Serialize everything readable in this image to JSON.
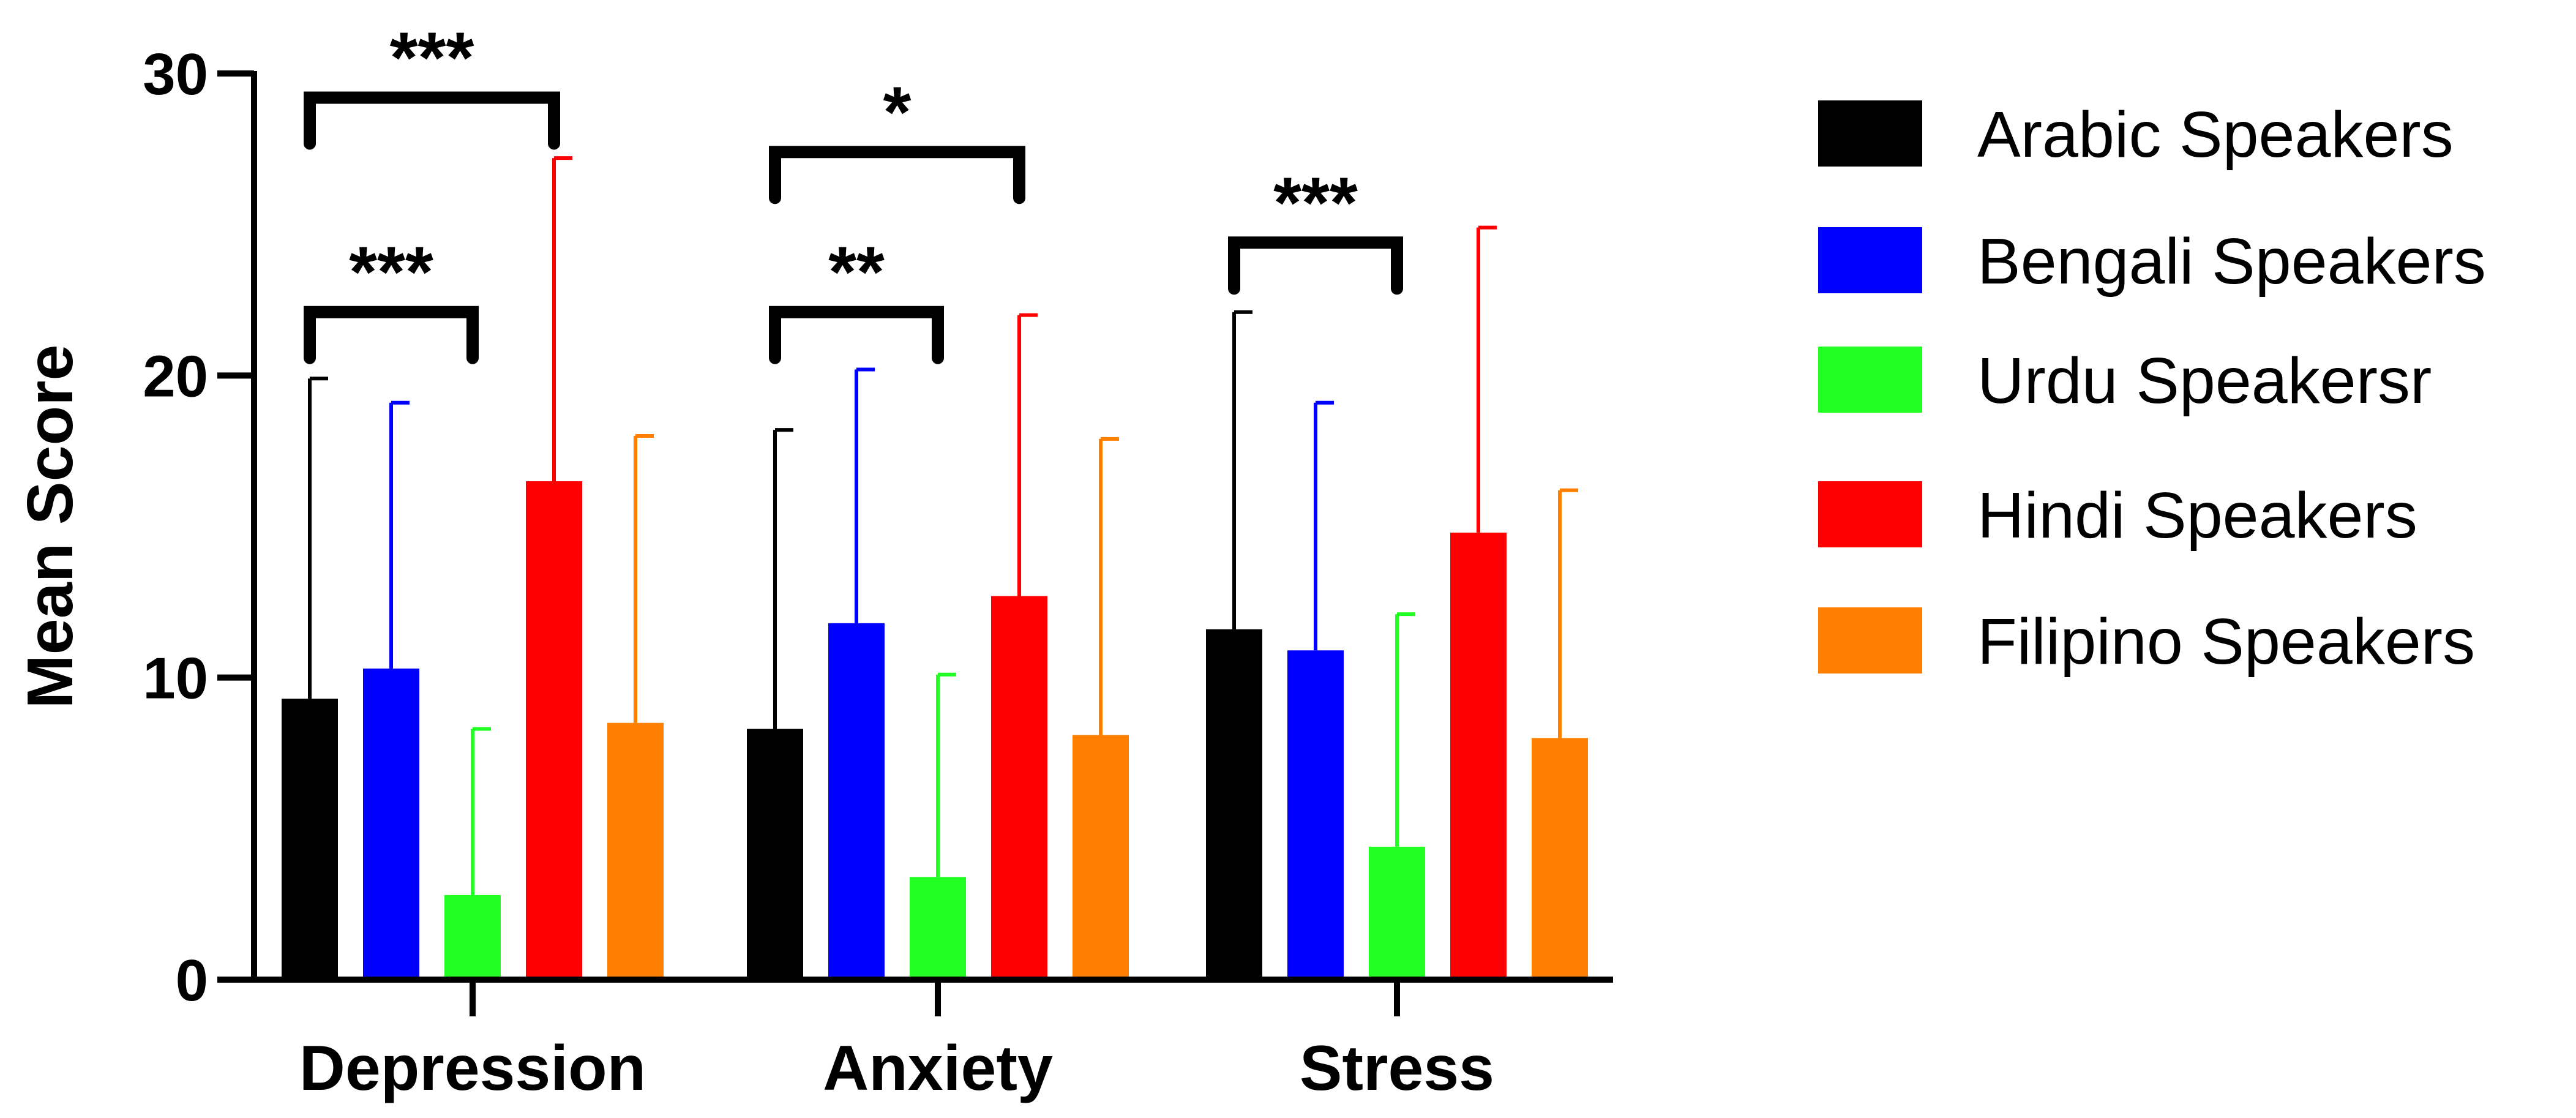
{
  "chart_data": {
    "type": "bar",
    "ylabel": "Mean Score",
    "xlabel": "",
    "ylim": [
      0,
      30
    ],
    "yticks": [
      0,
      10,
      20,
      30
    ],
    "categories": [
      "Depression",
      "Anxiety",
      "Stress"
    ],
    "series": [
      {
        "name": "Arabic Speakers",
        "color": "#000000",
        "values": [
          9.3,
          8.3,
          11.6
        ],
        "error": [
          10.6,
          9.9,
          10.5
        ]
      },
      {
        "name": "Bengali Speakers",
        "color": "#0000FF",
        "values": [
          10.3,
          11.8,
          10.9
        ],
        "error": [
          8.8,
          8.4,
          8.2
        ]
      },
      {
        "name": "Urdu Speakersr",
        "color": "#22FF22",
        "values": [
          2.8,
          3.4,
          4.4
        ],
        "error": [
          5.5,
          6.7,
          7.7
        ]
      },
      {
        "name": "Hindi Speakers",
        "color": "#FF0000",
        "values": [
          16.5,
          12.7,
          14.8
        ],
        "error": [
          10.7,
          9.3,
          10.1
        ]
      },
      {
        "name": "Filipino Speakers",
        "color": "#FF8000",
        "values": [
          8.5,
          8.1,
          8.0
        ],
        "error": [
          9.5,
          9.8,
          8.2
        ]
      }
    ],
    "significance": [
      {
        "category": 0,
        "from": 0,
        "to": 3,
        "label": "***",
        "y": 29.2
      },
      {
        "category": 0,
        "from": 0,
        "to": 2,
        "label": "***",
        "y": 22.1
      },
      {
        "category": 1,
        "from": 0,
        "to": 3,
        "label": "*",
        "y": 27.4
      },
      {
        "category": 1,
        "from": 0,
        "to": 2,
        "label": "**",
        "y": 22.1
      },
      {
        "category": 2,
        "from": 0,
        "to": 2,
        "label": "***",
        "y": 24.4
      }
    ],
    "legend_position": "right"
  }
}
